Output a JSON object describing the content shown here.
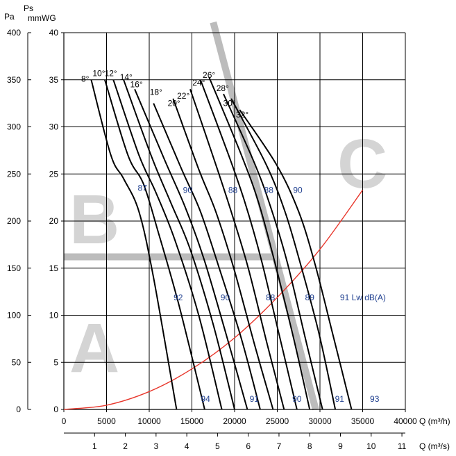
{
  "chart_data": {
    "type": "line",
    "y_pa_unit": "Pa",
    "y_ps_label": "Ps",
    "y_mmwg_unit": "mmWG",
    "x_m3h_label": "Q (m³/h)",
    "x_m3s_label": "Q (m³/s)",
    "xlim_m3h": [
      0,
      40000
    ],
    "ylim_pa": [
      0,
      400
    ],
    "ylim_mmwg": [
      0,
      40
    ],
    "x_ticks_m3h": [
      0,
      5000,
      10000,
      15000,
      20000,
      25000,
      30000,
      35000,
      40000
    ],
    "y_ticks_pa": [
      0,
      50,
      100,
      150,
      200,
      250,
      300,
      350,
      400
    ],
    "y_ticks_mmwg": [
      0,
      5,
      10,
      15,
      20,
      25,
      30,
      35,
      40
    ],
    "x_ticks_m3s": [
      1,
      2,
      3,
      4,
      5,
      6,
      7,
      8,
      9,
      10,
      11
    ],
    "grid": true,
    "zones": [
      "A",
      "B",
      "C"
    ],
    "series": [
      {
        "name": "8°",
        "points": [
          [
            3200,
            35
          ],
          [
            5500,
            27
          ],
          [
            7000,
            24.5
          ],
          [
            8800,
            21
          ],
          [
            10500,
            14
          ],
          [
            13200,
            0
          ]
        ]
      },
      {
        "name": "10°",
        "points": [
          [
            4800,
            35
          ],
          [
            7500,
            27
          ],
          [
            9300,
            24
          ],
          [
            11000,
            19
          ],
          [
            13500,
            11
          ],
          [
            16500,
            0
          ]
        ]
      },
      {
        "name": "12°",
        "points": [
          [
            5800,
            35
          ],
          [
            8800,
            27
          ],
          [
            10800,
            23
          ],
          [
            13000,
            18
          ],
          [
            15800,
            10
          ],
          [
            18500,
            0
          ]
        ]
      },
      {
        "name": "14°",
        "points": [
          [
            7000,
            35
          ],
          [
            10200,
            27
          ],
          [
            12500,
            22
          ],
          [
            14800,
            17
          ],
          [
            17500,
            9
          ],
          [
            20000,
            0
          ]
        ]
      },
      {
        "name": "16°",
        "points": [
          [
            8300,
            34
          ],
          [
            11800,
            26.5
          ],
          [
            14200,
            21.5
          ],
          [
            16400,
            16
          ],
          [
            19000,
            8
          ],
          [
            21500,
            0
          ]
        ]
      },
      {
        "name": "18°",
        "points": [
          [
            10500,
            32.5
          ],
          [
            13800,
            25.5
          ],
          [
            16000,
            21
          ],
          [
            18200,
            15
          ],
          [
            20800,
            7.5
          ],
          [
            23000,
            0
          ]
        ]
      },
      {
        "name": "20°",
        "points": [
          [
            12800,
            33
          ],
          [
            15800,
            25.5
          ],
          [
            17800,
            21
          ],
          [
            19900,
            15
          ],
          [
            22300,
            7
          ],
          [
            24500,
            0
          ]
        ]
      },
      {
        "name": "22°",
        "points": [
          [
            14800,
            34
          ],
          [
            17800,
            26
          ],
          [
            19600,
            21
          ],
          [
            21600,
            15
          ],
          [
            23800,
            7
          ],
          [
            25800,
            0
          ]
        ]
      },
      {
        "name": "24°",
        "points": [
          [
            16000,
            35
          ],
          [
            19300,
            27
          ],
          [
            21200,
            22
          ],
          [
            23100,
            16
          ],
          [
            25200,
            8
          ],
          [
            27300,
            0
          ]
        ]
      },
      {
        "name": "26°",
        "points": [
          [
            17000,
            35.3
          ],
          [
            20800,
            27
          ],
          [
            22800,
            22
          ],
          [
            24600,
            16
          ],
          [
            26800,
            8
          ],
          [
            28800,
            0
          ]
        ]
      },
      {
        "name": "28°",
        "points": [
          [
            18700,
            33.5
          ],
          [
            22400,
            26
          ],
          [
            24400,
            21
          ],
          [
            26200,
            15.5
          ],
          [
            28300,
            7.5
          ],
          [
            30300,
            0
          ]
        ]
      },
      {
        "name": "30°",
        "points": [
          [
            19600,
            33
          ],
          [
            23700,
            26
          ],
          [
            25900,
            21
          ],
          [
            27700,
            15.5
          ],
          [
            29900,
            8
          ],
          [
            31800,
            0
          ]
        ]
      },
      {
        "name": "32°",
        "points": [
          [
            20600,
            31.8
          ],
          [
            24900,
            26
          ],
          [
            27500,
            21
          ],
          [
            29400,
            15.5
          ],
          [
            31500,
            8
          ],
          [
            33700,
            0
          ]
        ]
      }
    ],
    "system_curve": {
      "points": [
        [
          0,
          0
        ],
        [
          5000,
          0.45
        ],
        [
          10000,
          1.9
        ],
        [
          15000,
          4.3
        ],
        [
          20000,
          7.6
        ],
        [
          25000,
          11.9
        ],
        [
          30000,
          17
        ],
        [
          35000,
          23.3
        ]
      ]
    },
    "angle_labels": [
      {
        "text": "8°",
        "x": 2500,
        "y": 34.8
      },
      {
        "text": "10°",
        "x": 4100,
        "y": 35.4
      },
      {
        "text": "12°",
        "x": 5500,
        "y": 35.4
      },
      {
        "text": "14°",
        "x": 7300,
        "y": 35.0
      },
      {
        "text": "16°",
        "x": 8500,
        "y": 34.2
      },
      {
        "text": "18°",
        "x": 10800,
        "y": 33.4
      },
      {
        "text": "20°",
        "x": 12900,
        "y": 32.2
      },
      {
        "text": "22°",
        "x": 14000,
        "y": 33.0
      },
      {
        "text": "24°",
        "x": 15800,
        "y": 34.4
      },
      {
        "text": "26°",
        "x": 17000,
        "y": 35.2
      },
      {
        "text": "28°",
        "x": 18600,
        "y": 33.8
      },
      {
        "text": "30°",
        "x": 19400,
        "y": 32.2
      },
      {
        "text": "32°",
        "x": 20900,
        "y": 31.0
      }
    ],
    "noise_labels": [
      {
        "text": "87",
        "x": 9200,
        "y": 23.2
      },
      {
        "text": "90",
        "x": 14500,
        "y": 23.0
      },
      {
        "text": "88",
        "x": 19800,
        "y": 23.0
      },
      {
        "text": "88",
        "x": 24000,
        "y": 23.0
      },
      {
        "text": "90",
        "x": 27400,
        "y": 23.0
      },
      {
        "text": "92",
        "x": 13400,
        "y": 11.6
      },
      {
        "text": "90",
        "x": 18900,
        "y": 11.6
      },
      {
        "text": "88",
        "x": 24200,
        "y": 11.6
      },
      {
        "text": "89",
        "x": 28800,
        "y": 11.6
      },
      {
        "text": "91 Lw dB(A)",
        "x": 33000,
        "y": 11.6
      },
      {
        "text": "94",
        "x": 16600,
        "y": 0.8
      },
      {
        "text": "91",
        "x": 22300,
        "y": 0.8
      },
      {
        "text": "90",
        "x": 27300,
        "y": 0.8
      },
      {
        "text": "91",
        "x": 32300,
        "y": 0.8
      },
      {
        "text": "93",
        "x": 36400,
        "y": 0.8
      }
    ]
  }
}
